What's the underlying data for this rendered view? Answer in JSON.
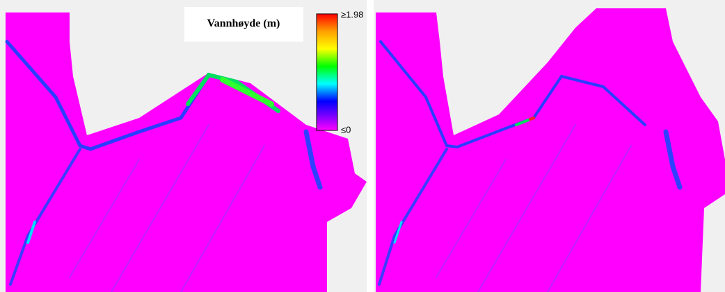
{
  "legend": {
    "title": "Vannhøyde (m)",
    "max_label": "≥1.98",
    "min_label": "≤0"
  }
}
